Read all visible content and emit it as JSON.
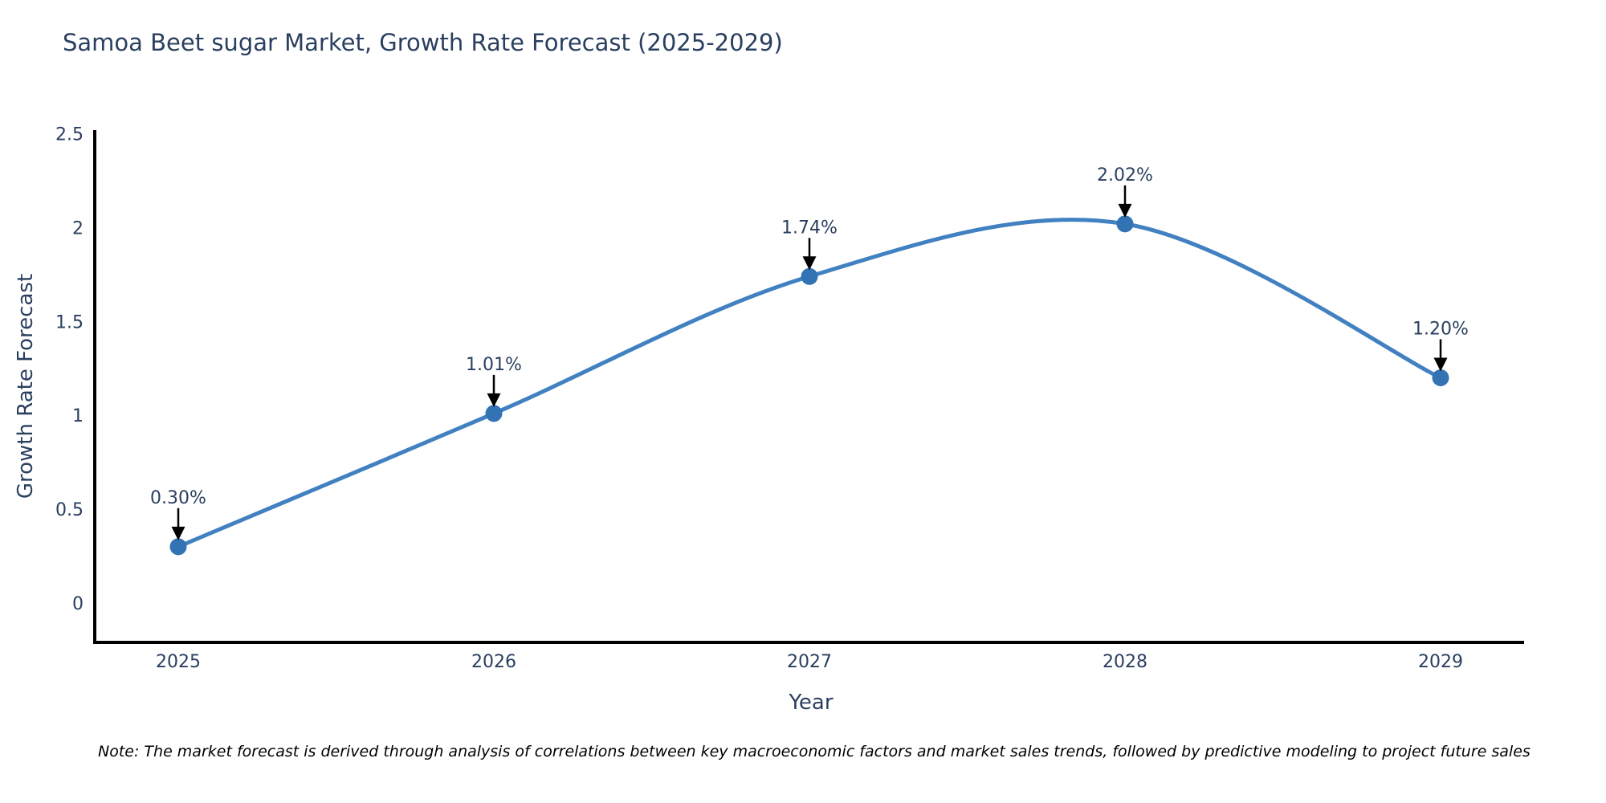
{
  "chart_data": {
    "type": "line",
    "title": "Samoa Beet sugar Market, Growth Rate Forecast (2025-2029)",
    "xlabel": "Year",
    "ylabel": "Growth Rate Forecast",
    "x": [
      "2025",
      "2026",
      "2027",
      "2028",
      "2029"
    ],
    "series": [
      {
        "name": "Growth Rate Forecast",
        "values": [
          0.3,
          1.01,
          1.74,
          2.02,
          1.2
        ]
      }
    ],
    "point_labels": [
      "0.30%",
      "1.01%",
      "1.74%",
      "2.02%",
      "1.20%"
    ],
    "yticks": [
      0,
      0.5,
      1,
      1.5,
      2,
      2.5
    ],
    "ytick_labels": [
      "0",
      "0.5",
      "1",
      "1.5",
      "2",
      "2.5"
    ],
    "ylim": [
      -0.21,
      2.52
    ],
    "grid": false,
    "legend_position": "none",
    "line_shape": "spline",
    "colors": {
      "line": "#4181c1",
      "marker": "#3273b3",
      "axis": "#000000",
      "text": "#2a3f5f",
      "annotation_arrow": "#000000"
    }
  },
  "note": "Note: The market forecast is derived through analysis of correlations between key macroeconomic factors and market sales trends, followed by predictive modeling to project future sales"
}
